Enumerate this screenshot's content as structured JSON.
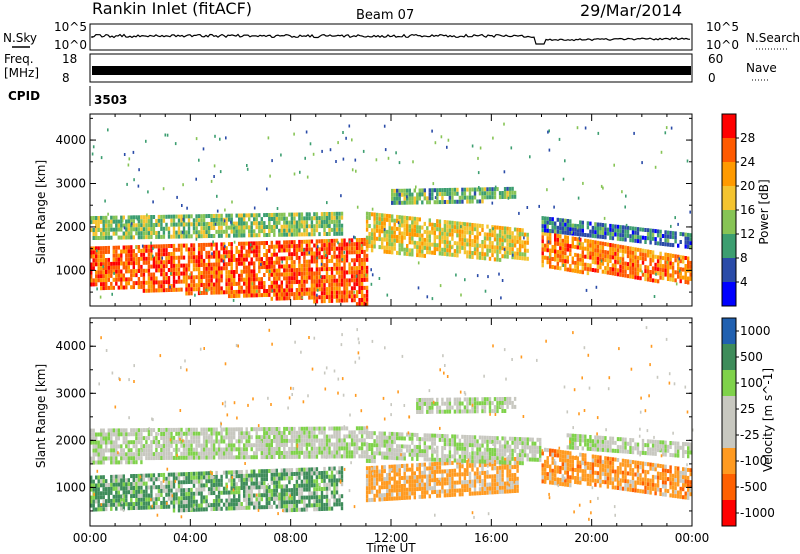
{
  "header": {
    "station": "Rankin Inlet (fitACF)",
    "beam": "Beam 07",
    "date": "29/Mar/2014"
  },
  "noise_panel": {
    "left_label": "N.Sky",
    "left_ticks": [
      "10^5",
      "10^0"
    ],
    "right_label": "N.Search",
    "right_ticks": [
      "10^5",
      "10^0"
    ]
  },
  "freq_panel": {
    "left_label_1": "Freq.",
    "left_label_2": "[MHz]",
    "left_ticks": [
      "18",
      "8"
    ],
    "right_label": "Nave",
    "right_ticks": [
      "60",
      "0"
    ]
  },
  "cpid": {
    "label": "CPID",
    "value": "3503"
  },
  "colors": {
    "power": [
      "#0000ff",
      "#2a4ba8",
      "#3c9e70",
      "#87c455",
      "#f4c430",
      "#ff9a00",
      "#ff5a00",
      "#ff0000"
    ],
    "velocity": [
      "#ff0000",
      "#ff6000",
      "#ff9a20",
      "#c8c8c0",
      "#c8c8c0",
      "#7fd24a",
      "#3e8c5a",
      "#2060b0"
    ]
  },
  "chart_data": [
    {
      "type": "heatmap",
      "name": "power",
      "ylabel": "Slant Range [km]",
      "colorbar_label": "Power [dB]",
      "colorbar_ticks": [
        "28",
        "24",
        "20",
        "16",
        "12",
        "8",
        "4"
      ],
      "y_ticks": [
        "4000",
        "3000",
        "2000",
        "1000"
      ],
      "ylim": [
        180,
        4600
      ],
      "x_ticks": [
        "00:00",
        "04:00",
        "08:00",
        "12:00",
        "16:00",
        "20:00",
        "00:00"
      ],
      "xlim_hours": [
        0,
        24
      ],
      "echo_bands": [
        {
          "x": [
            0,
            11
          ],
          "center": [
            1100,
            1000
          ],
          "width": [
            900,
            1500
          ],
          "value": 26
        },
        {
          "x": [
            0,
            10
          ],
          "center": [
            2000,
            2100
          ],
          "width": [
            500,
            500
          ],
          "value": 14
        },
        {
          "x": [
            11,
            17.5
          ],
          "center": [
            1900,
            1600
          ],
          "width": [
            900,
            700
          ],
          "value": 18
        },
        {
          "x": [
            12,
            17
          ],
          "center": [
            2700,
            2800
          ],
          "width": [
            350,
            250
          ],
          "value": 12
        },
        {
          "x": [
            18,
            24
          ],
          "center": [
            1500,
            1000
          ],
          "width": [
            800,
            600
          ],
          "value": 24
        },
        {
          "x": [
            18,
            24
          ],
          "center": [
            2100,
            1700
          ],
          "width": [
            300,
            300
          ],
          "value": 8
        }
      ]
    },
    {
      "type": "heatmap",
      "name": "velocity",
      "ylabel": "Slant Range [km]",
      "colorbar_label": "Velocity [m s^-1]",
      "colorbar_ticks": [
        "1000",
        "500",
        "100",
        "25",
        "-25",
        "-100",
        "-500",
        "-1000"
      ],
      "y_ticks": [
        "4000",
        "3000",
        "2000",
        "1000"
      ],
      "ylim": [
        180,
        4600
      ],
      "x_label": "Time UT",
      "x_ticks": [
        "00:00",
        "04:00",
        "08:00",
        "12:00",
        "16:00",
        "20:00",
        "00:00"
      ],
      "xlim_hours": [
        0,
        24
      ],
      "echo_bands": [
        {
          "x": [
            0,
            10
          ],
          "center": [
            900,
            1000
          ],
          "width": [
            700,
            900
          ],
          "value": 120
        },
        {
          "x": [
            0,
            11
          ],
          "center": [
            1900,
            2000
          ],
          "width": [
            700,
            600
          ],
          "value": 0
        },
        {
          "x": [
            11,
            17
          ],
          "center": [
            1100,
            1300
          ],
          "width": [
            700,
            700
          ],
          "value": -200
        },
        {
          "x": [
            11,
            18
          ],
          "center": [
            1900,
            1800
          ],
          "width": [
            600,
            500
          ],
          "value": 0
        },
        {
          "x": [
            13,
            17
          ],
          "center": [
            2750,
            2800
          ],
          "width": [
            300,
            250
          ],
          "value": 0
        },
        {
          "x": [
            18,
            24
          ],
          "center": [
            1500,
            1100
          ],
          "width": [
            700,
            600
          ],
          "value": -300
        },
        {
          "x": [
            19,
            24
          ],
          "center": [
            2000,
            1800
          ],
          "width": [
            300,
            300
          ],
          "value": 0
        }
      ]
    }
  ]
}
